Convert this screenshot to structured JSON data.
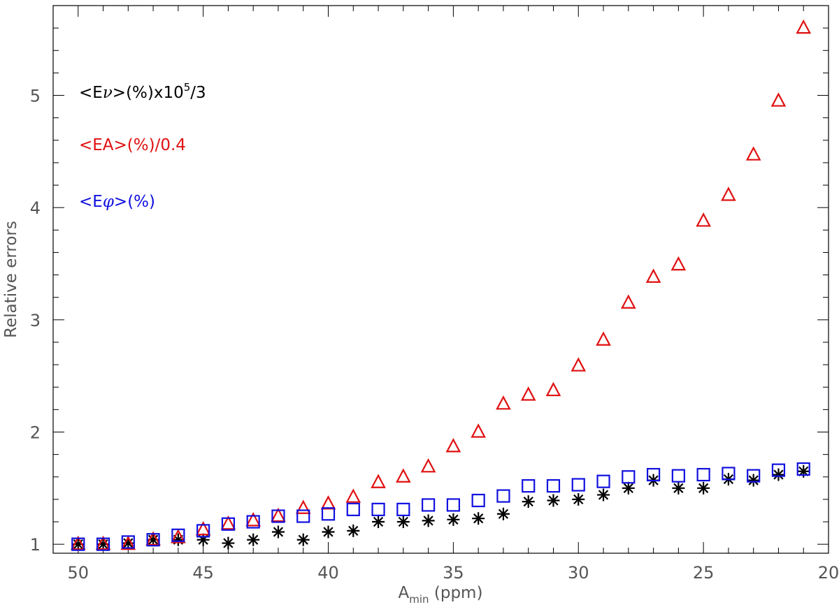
{
  "chart_data": {
    "type": "scatter",
    "title": "",
    "xlabel": {
      "main": "A",
      "sub": "min",
      "rest": " (ppm)"
    },
    "ylabel": "Relative errors",
    "xlim": [
      51,
      20
    ],
    "ylim": [
      0.92,
      5.8
    ],
    "x_reversed": true,
    "grid": false,
    "x_ticks": [
      50,
      45,
      40,
      35,
      30,
      25,
      20
    ],
    "y_ticks": [
      1,
      2,
      3,
      4,
      5
    ],
    "x": [
      50,
      49,
      48,
      47,
      46,
      45,
      44,
      43,
      42,
      41,
      40,
      39,
      38,
      37,
      36,
      35,
      34,
      33,
      32,
      31,
      30,
      29,
      28,
      27,
      26,
      25,
      24,
      23,
      22,
      21
    ],
    "series": [
      {
        "name": "<Eν>(%)x10^5/3",
        "marker": "asterisk",
        "color": "#000000",
        "values": [
          1.0,
          1.0,
          1.01,
          1.04,
          1.04,
          1.04,
          1.01,
          1.04,
          1.11,
          1.04,
          1.11,
          1.12,
          1.2,
          1.2,
          1.21,
          1.22,
          1.23,
          1.27,
          1.38,
          1.39,
          1.4,
          1.44,
          1.5,
          1.57,
          1.5,
          1.5,
          1.58,
          1.57,
          1.62,
          1.65
        ]
      },
      {
        "name": "<EA>(%)/0.4",
        "marker": "triangle",
        "color": "#e01010",
        "values": [
          1.0,
          1.0,
          1.0,
          1.04,
          1.06,
          1.13,
          1.18,
          1.21,
          1.25,
          1.32,
          1.36,
          1.42,
          1.55,
          1.6,
          1.69,
          1.87,
          2.0,
          2.25,
          2.33,
          2.37,
          2.59,
          2.82,
          3.15,
          3.38,
          3.49,
          3.88,
          4.11,
          4.47,
          4.95,
          5.6
        ]
      },
      {
        "name": "<Eφ>(%)",
        "marker": "square",
        "color": "#1010e0",
        "values": [
          1.0,
          1.0,
          1.02,
          1.04,
          1.08,
          1.12,
          1.18,
          1.2,
          1.25,
          1.25,
          1.27,
          1.31,
          1.31,
          1.31,
          1.35,
          1.35,
          1.39,
          1.43,
          1.52,
          1.52,
          1.53,
          1.56,
          1.6,
          1.62,
          1.61,
          1.62,
          1.63,
          1.61,
          1.66,
          1.67
        ]
      }
    ],
    "legend": [
      {
        "pre": "<E",
        "sym": "ν",
        "post": ">(%)x10",
        "sup": "5",
        "tail": "/3",
        "color": "#000000"
      },
      {
        "pre": "<EA>(%)/0.4",
        "sym": "",
        "post": "",
        "sup": "",
        "tail": "",
        "color": "#e01010"
      },
      {
        "pre": "<E",
        "sym": "φ",
        "post": ">(%)",
        "sup": "",
        "tail": "",
        "color": "#1010e0"
      }
    ],
    "legend_placement": "top-left"
  }
}
